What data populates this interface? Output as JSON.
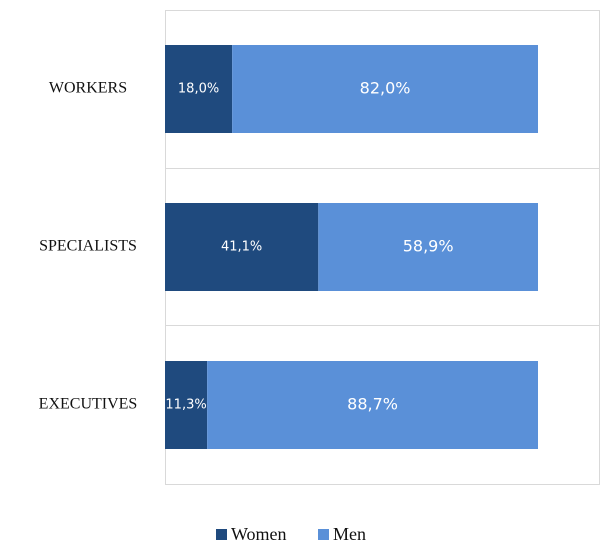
{
  "chart_data": {
    "type": "stacked_bar_horizontal",
    "categories": [
      "WORKERS",
      "SPECIALISTS",
      "EXECUTIVES"
    ],
    "series": [
      {
        "name": "Women",
        "color": "#1f4a7e",
        "values": [
          18.0,
          41.1,
          11.3
        ],
        "value_labels": [
          "18,0%",
          "41,1%",
          "11,3%"
        ]
      },
      {
        "name": "Men",
        "color": "#5a90d8",
        "values": [
          82.0,
          58.9,
          88.7
        ],
        "value_labels": [
          "82,0%",
          "58,9%",
          "88,7%"
        ]
      }
    ],
    "xlim": [
      0,
      100
    ]
  }
}
